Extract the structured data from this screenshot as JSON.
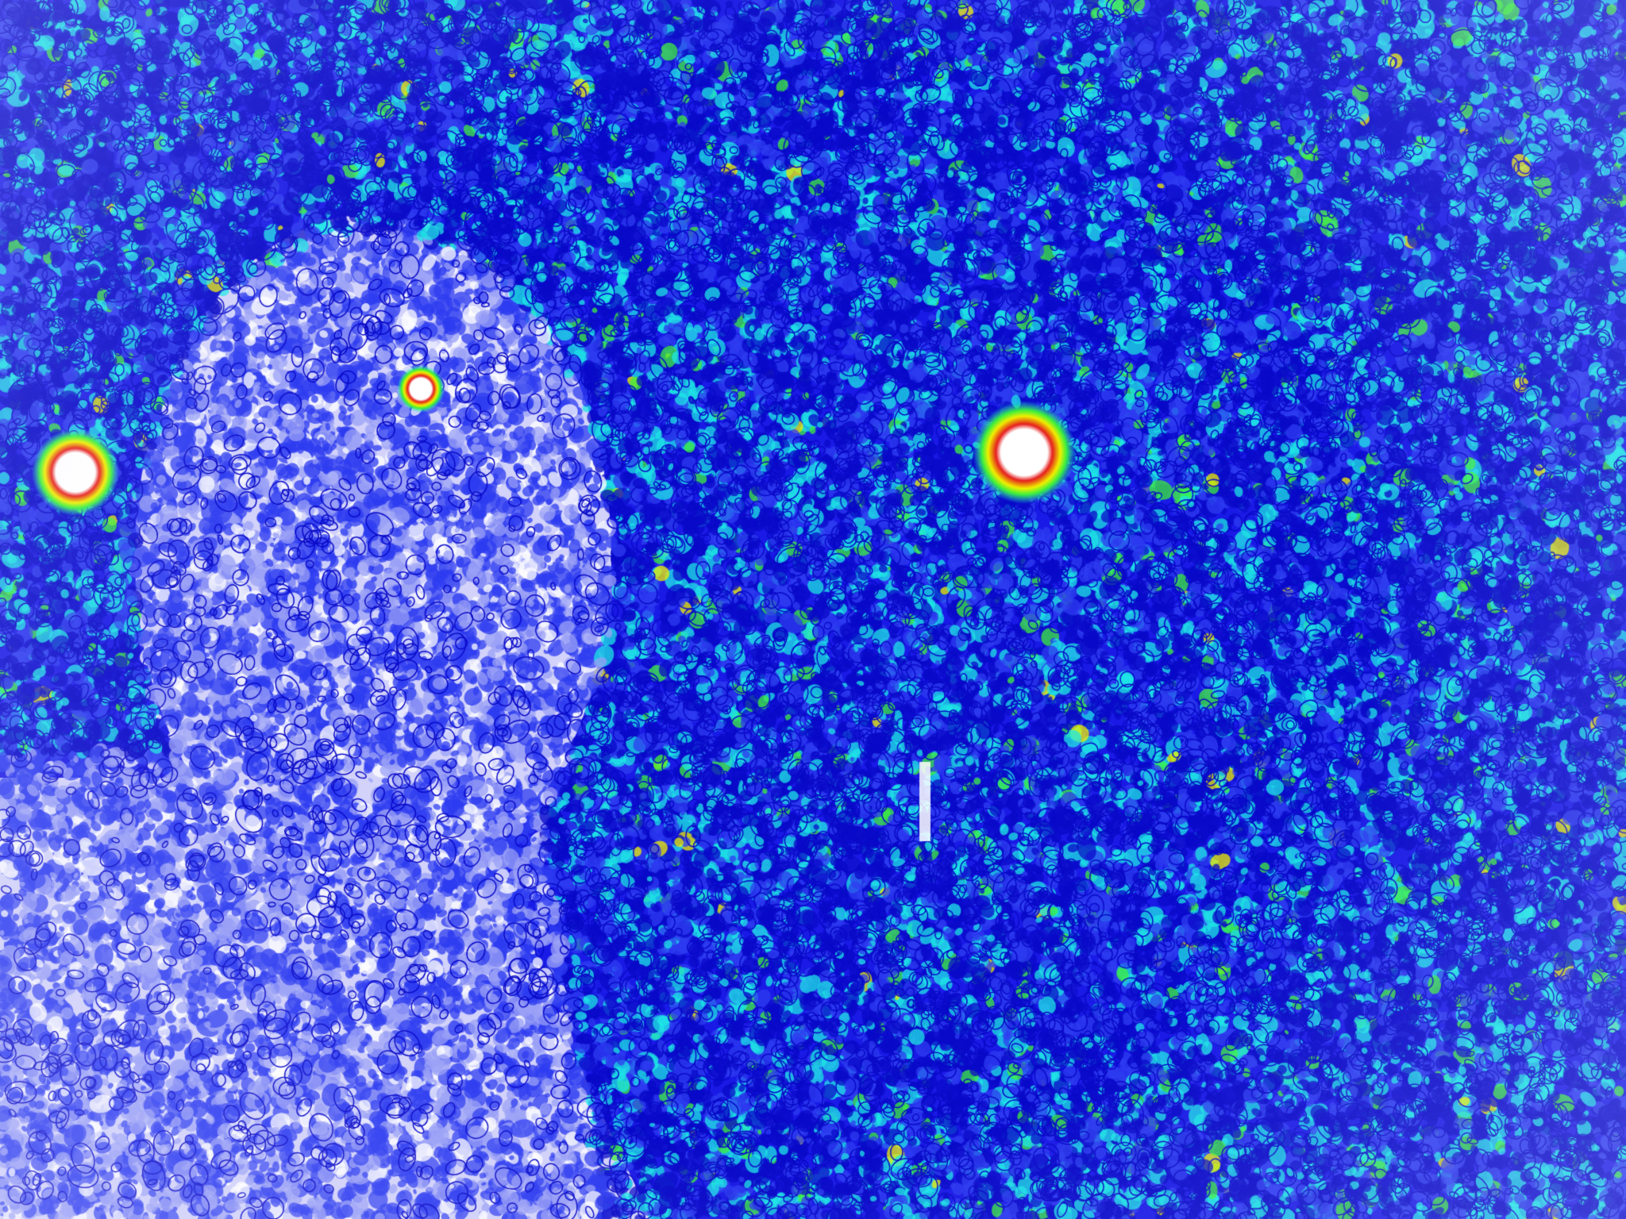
{
  "image": {
    "kind": "false-color noise intensity map",
    "palette": {
      "background": "#1a1ae6",
      "dark": "#0a0ac8",
      "mid": "#2e3cf0",
      "cyan": "#1ee6e6",
      "green": "#3cf03c",
      "yellow": "#f0f000",
      "red": "#e61e1e",
      "light": "#d2d2fa",
      "white": "#ffffff"
    }
  }
}
